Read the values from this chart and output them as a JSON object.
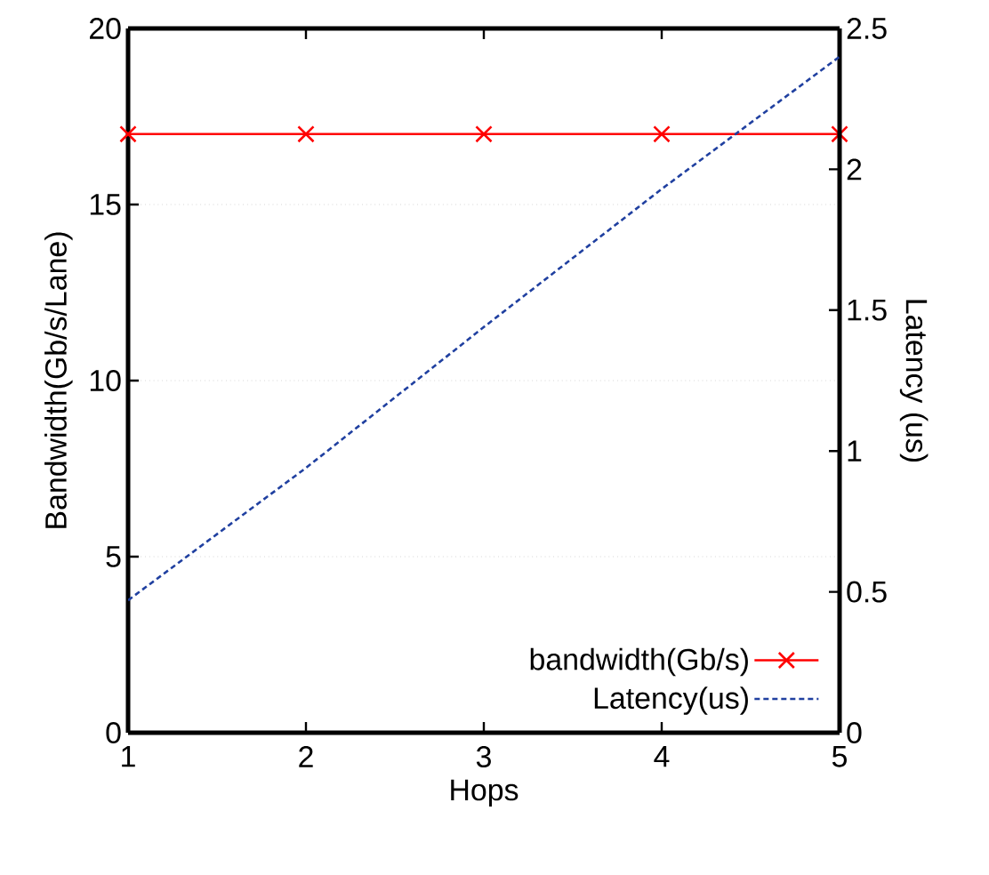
{
  "chart_data": {
    "type": "line",
    "xlabel": "Hops",
    "ylabel": "Bandwidth(Gb/s/Lane)",
    "y2label": "Latency (us)",
    "x": [
      1,
      2,
      3,
      4,
      5
    ],
    "series": [
      {
        "name": "bandwidth(Gb/s)",
        "color": "#ff0000",
        "values": [
          17,
          17,
          17,
          17,
          17
        ],
        "marker": "cross",
        "line_style": "solid"
      },
      {
        "name": "Latency(us)",
        "color": "#2040a0",
        "values": [
          0.47,
          0.94,
          1.44,
          1.93,
          2.4
        ],
        "axis": "y2",
        "marker": "none",
        "line_style": "dashed"
      }
    ],
    "xlim": [
      1,
      5
    ],
    "xticks": [
      1,
      2,
      3,
      4,
      5
    ],
    "ylim": [
      0,
      20
    ],
    "yticks": [
      0,
      5,
      10,
      15,
      20
    ],
    "y2lim": [
      0,
      2.5
    ],
    "y2ticks": [
      0,
      0.5,
      1,
      1.5,
      2,
      2.5
    ],
    "grid": "y",
    "legend": "bottom right"
  }
}
